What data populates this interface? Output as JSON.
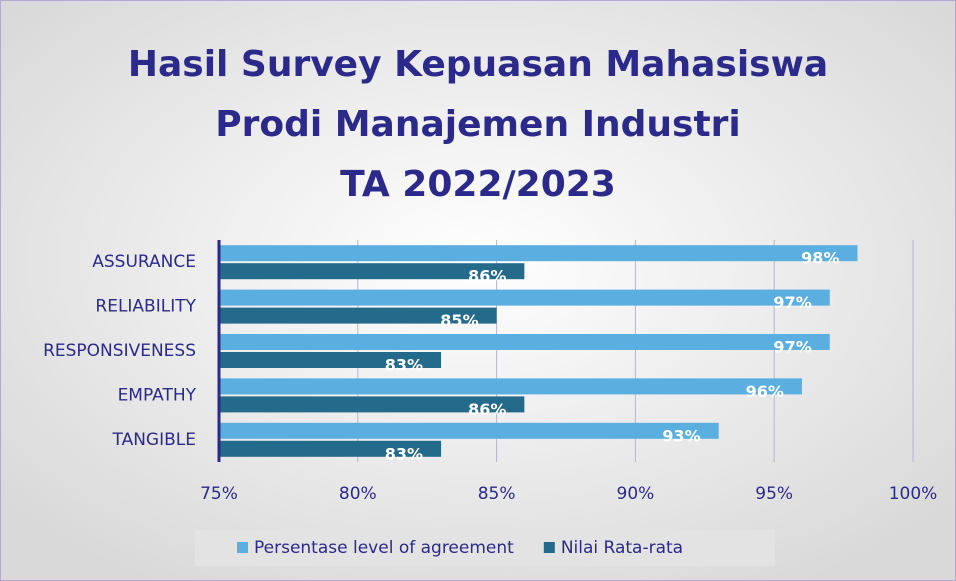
{
  "chart_data": {
    "type": "bar",
    "title": [
      "Hasil Survey Kepuasan Mahasiswa",
      "Prodi Manajemen Industri",
      "TA 2022/2023"
    ],
    "orientation": "horizontal",
    "categories": [
      "ASSURANCE",
      "RELIABILITY",
      "RESPONSIVENESS",
      "EMPATHY",
      "TANGIBLE"
    ],
    "series": [
      {
        "name": "Persentase level of agreement",
        "color": "#5aaee0",
        "values": [
          98,
          97,
          97,
          96,
          93
        ],
        "value_labels": [
          "98%",
          "97%",
          "97%",
          "96%",
          "93%"
        ]
      },
      {
        "name": "Nilai Rata-rata",
        "color": "#246a8a",
        "values": [
          86,
          85,
          83,
          86,
          83
        ],
        "value_labels": [
          "86%",
          "85%",
          "83%",
          "86%",
          "83%"
        ]
      }
    ],
    "xlim": [
      75,
      100
    ],
    "xticks": [
      {
        "value": 75,
        "label": "75%"
      },
      {
        "value": 80,
        "label": "80%"
      },
      {
        "value": 85,
        "label": "85%"
      },
      {
        "value": 90,
        "label": "90%"
      },
      {
        "value": 95,
        "label": "95%"
      },
      {
        "value": 100,
        "label": "100%"
      }
    ],
    "grid": true,
    "legend": "bottom"
  }
}
